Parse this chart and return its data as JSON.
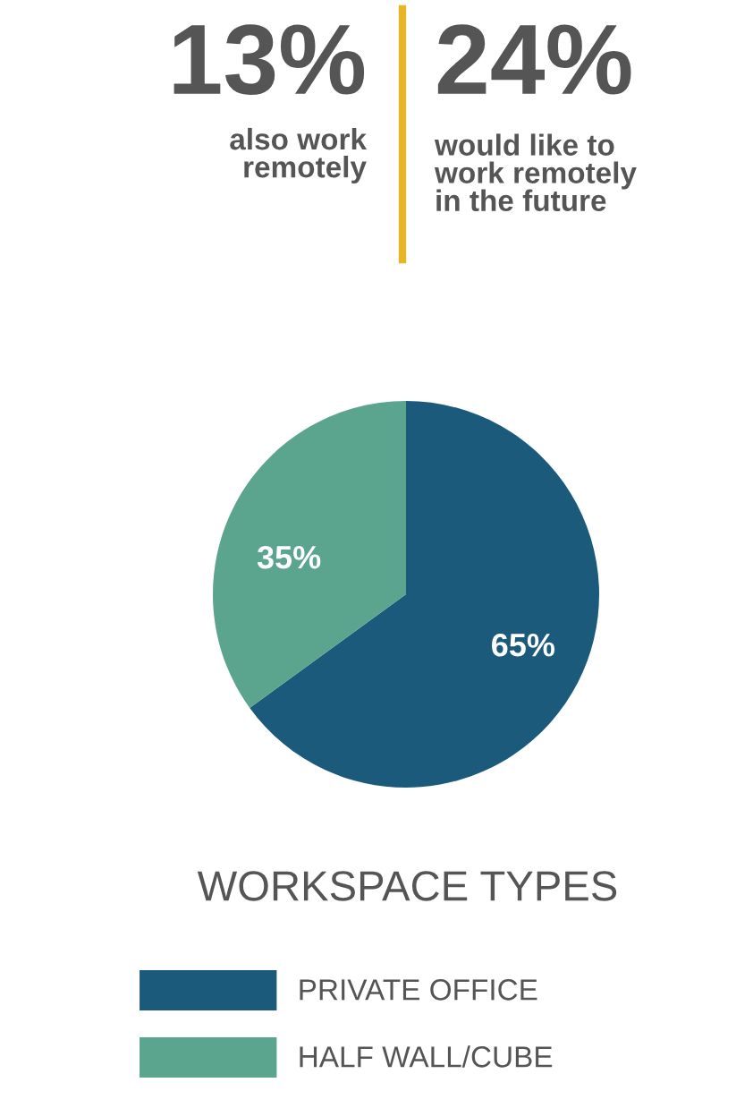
{
  "chart_data": {
    "type": "pie",
    "title": "WORKSPACE TYPES",
    "categories": [
      "PRIVATE OFFICE",
      "HALF WALL/CUBE"
    ],
    "values": [
      65,
      35
    ],
    "colors": [
      "#1b5a7a",
      "#5ba58f"
    ],
    "value_labels": [
      "65%",
      "35%"
    ],
    "legend": "bottom",
    "annotations": [
      "13%",
      "also work\nremotely",
      "24%",
      "would like to\nwork remotely\nin the future"
    ]
  }
}
